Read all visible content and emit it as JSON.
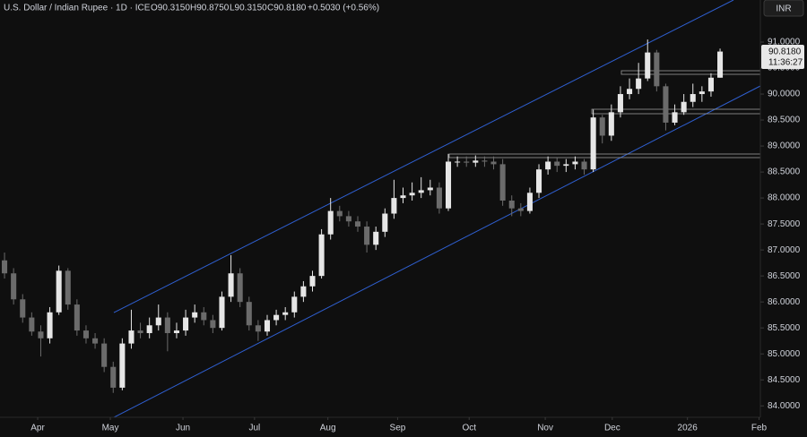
{
  "header": {
    "title": "U.S. Dollar / Indian Rupee · 1D · ICE",
    "open": "O90.3150",
    "high": "H90.8750",
    "low": "L90.3150",
    "close": "C90.8180",
    "change": "+0.5030 (+0.56%)",
    "currency": "INR",
    "last_price": "90.8180",
    "countdown": "11:36:27"
  },
  "chart_data": {
    "type": "candlestick",
    "up_color": "#e6e6e6",
    "down_color": "#6b6b6b",
    "categories": [
      null,
      null,
      null,
      null,
      null,
      null,
      null,
      null,
      null,
      null,
      null,
      null,
      null,
      null,
      null,
      null,
      null,
      null,
      null,
      null,
      null,
      null,
      null,
      null,
      null,
      null,
      null,
      null,
      null,
      null,
      null,
      null,
      null,
      null,
      null,
      null,
      null,
      null,
      null,
      null,
      null,
      null,
      null,
      null,
      null,
      null,
      null,
      null,
      null,
      null,
      null,
      null,
      null,
      null,
      null,
      null,
      null,
      null,
      null,
      null,
      null,
      null,
      null,
      null,
      null,
      null,
      null,
      null,
      null,
      null,
      null,
      null,
      null,
      null,
      null,
      null,
      null,
      null,
      null,
      null
    ],
    "open": [
      86.8,
      86.55,
      86.05,
      85.7,
      85.43,
      85.3,
      85.8,
      86.6,
      85.95,
      85.45,
      85.3,
      85.2,
      84.75,
      84.35,
      85.2,
      85.45,
      85.4,
      85.55,
      85.7,
      85.4,
      85.45,
      85.7,
      85.8,
      85.65,
      85.5,
      86.1,
      86.55,
      86.0,
      85.55,
      85.43,
      85.65,
      85.75,
      85.8,
      86.1,
      86.3,
      86.5,
      87.3,
      87.75,
      87.65,
      87.55,
      87.45,
      87.1,
      87.35,
      87.7,
      88.0,
      88.05,
      88.1,
      88.15,
      88.2,
      87.8,
      88.7,
      88.7,
      88.68,
      88.72,
      88.7,
      88.65,
      87.95,
      87.8,
      87.75,
      88.1,
      88.55,
      88.7,
      88.62,
      88.65,
      88.7,
      88.55,
      89.55,
      89.2,
      89.65,
      90.0,
      90.1,
      90.3,
      90.8,
      90.15,
      89.45,
      89.65,
      89.85,
      90.0,
      90.05,
      90.315
    ],
    "high": [
      86.95,
      86.65,
      86.15,
      85.8,
      85.55,
      85.9,
      86.7,
      86.65,
      86.05,
      85.55,
      85.4,
      85.3,
      84.85,
      85.3,
      85.85,
      85.6,
      85.7,
      85.95,
      85.8,
      85.6,
      85.85,
      85.95,
      85.9,
      85.75,
      86.2,
      86.9,
      86.65,
      86.1,
      85.65,
      85.75,
      85.85,
      85.9,
      86.2,
      86.4,
      86.6,
      87.4,
      88.0,
      87.85,
      87.75,
      87.65,
      87.55,
      87.45,
      87.8,
      88.35,
      88.2,
      88.3,
      88.4,
      88.35,
      88.3,
      88.85,
      88.8,
      88.8,
      88.82,
      88.8,
      88.8,
      88.75,
      88.05,
      87.9,
      88.2,
      88.65,
      88.8,
      88.78,
      88.75,
      88.8,
      88.75,
      89.7,
      89.6,
      89.8,
      90.15,
      90.3,
      90.6,
      91.05,
      90.85,
      90.2,
      89.8,
      90.0,
      90.2,
      90.15,
      90.4,
      90.875
    ],
    "low": [
      86.45,
      85.95,
      85.6,
      85.35,
      84.95,
      85.2,
      85.75,
      85.85,
      85.35,
      85.2,
      85.1,
      84.65,
      84.25,
      84.3,
      85.1,
      85.3,
      85.3,
      85.45,
      85.05,
      85.3,
      85.35,
      85.6,
      85.55,
      85.4,
      85.45,
      86.0,
      85.9,
      85.45,
      85.25,
      85.35,
      85.55,
      85.65,
      85.7,
      86.0,
      86.2,
      86.45,
      87.2,
      87.55,
      87.45,
      87.35,
      86.95,
      87.0,
      87.25,
      87.6,
      87.9,
      87.95,
      88.0,
      88.05,
      87.7,
      87.75,
      88.6,
      88.6,
      88.6,
      88.6,
      88.55,
      87.85,
      87.65,
      87.65,
      87.7,
      88.0,
      88.45,
      88.5,
      88.5,
      88.55,
      88.45,
      88.5,
      89.05,
      89.1,
      89.55,
      89.9,
      90.0,
      90.25,
      90.05,
      89.3,
      89.4,
      89.6,
      89.75,
      89.85,
      89.95,
      90.315
    ],
    "close": [
      86.55,
      86.05,
      85.7,
      85.43,
      85.3,
      85.8,
      86.6,
      85.95,
      85.45,
      85.3,
      85.2,
      84.75,
      84.35,
      85.2,
      85.45,
      85.4,
      85.55,
      85.7,
      85.4,
      85.45,
      85.7,
      85.8,
      85.65,
      85.5,
      86.1,
      86.55,
      86.0,
      85.55,
      85.43,
      85.65,
      85.75,
      85.8,
      86.1,
      86.3,
      86.5,
      87.3,
      87.75,
      87.65,
      87.55,
      87.45,
      87.1,
      87.35,
      87.7,
      88.0,
      88.05,
      88.1,
      88.15,
      88.2,
      87.8,
      88.7,
      88.7,
      88.68,
      88.72,
      88.7,
      88.65,
      87.95,
      87.8,
      87.75,
      88.1,
      88.55,
      88.7,
      88.62,
      88.65,
      88.7,
      88.55,
      89.55,
      89.2,
      89.65,
      90.0,
      90.1,
      90.3,
      90.8,
      90.15,
      89.45,
      89.65,
      89.85,
      90.0,
      90.05,
      90.315,
      90.818
    ],
    "xlim": [
      -0.5,
      83.45
    ],
    "xticks": [
      {
        "value": 3.66,
        "label": "Apr"
      },
      {
        "value": 11.68,
        "label": "May"
      },
      {
        "value": 19.7,
        "label": "Jun"
      },
      {
        "value": 27.6,
        "label": "Jul"
      },
      {
        "value": 35.7,
        "label": "Aug"
      },
      {
        "value": 43.4,
        "label": "Sep"
      },
      {
        "value": 51.3,
        "label": "Oct"
      },
      {
        "value": 59.7,
        "label": "Nov"
      },
      {
        "value": 67.1,
        "label": "Dec"
      },
      {
        "value": 75.4,
        "label": "2026"
      },
      {
        "value": 83.3,
        "label": "Feb"
      }
    ],
    "ylim": [
      83.78,
      91.81
    ],
    "yticks": [
      {
        "value": 84,
        "label": "84.0000"
      },
      {
        "value": 84.5,
        "label": "84.5000"
      },
      {
        "value": 85,
        "label": "85.0000"
      },
      {
        "value": 85.5,
        "label": "85.5000"
      },
      {
        "value": 86,
        "label": "86.0000"
      },
      {
        "value": 86.5,
        "label": "86.5000"
      },
      {
        "value": 87,
        "label": "87.0000"
      },
      {
        "value": 87.5,
        "label": "87.5000"
      },
      {
        "value": 88,
        "label": "88.0000"
      },
      {
        "value": 88.5,
        "label": "88.5000"
      },
      {
        "value": 89,
        "label": "89.0000"
      },
      {
        "value": 89.5,
        "label": "89.5000"
      },
      {
        "value": 90,
        "label": "90.0000"
      },
      {
        "value": 90.5,
        "label": "90.5000"
      },
      {
        "value": 91,
        "label": "91.0000"
      }
    ],
    "grid": false
  }
}
